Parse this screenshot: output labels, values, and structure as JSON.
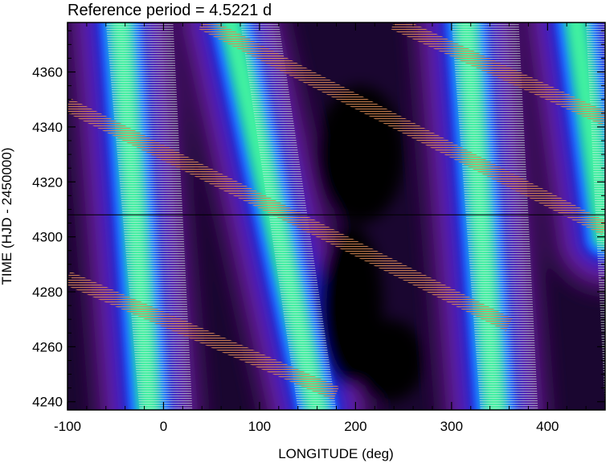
{
  "chart_data": {
    "type": "heatmap",
    "title": "Reference period = 4.5221 d",
    "xlabel": "LONGITUDE (deg)",
    "ylabel": "TIME (HJD - 2450000)",
    "xlim": [
      -100,
      460
    ],
    "ylim": [
      4237,
      4378
    ],
    "x_ticks": [
      -100,
      0,
      100,
      200,
      300,
      400
    ],
    "y_ticks": [
      4240,
      4260,
      4280,
      4300,
      4320,
      4340,
      4360
    ],
    "grid": false,
    "colors": {
      "background": "#000000",
      "levels": [
        "#000000",
        "#3a0a5a",
        "#6a1fa0",
        "#2222cc",
        "#1a6cff",
        "#20c8b0",
        "#40f0a0"
      ],
      "light_band": "#cfead8",
      "dark_band": "#d08050"
    },
    "reference_line_y": 4308,
    "ridges": [
      {
        "x0": -45,
        "y0": 4378,
        "x1": -15,
        "y1": 4237
      },
      {
        "x0": 70,
        "y0": 4378,
        "x1": 160,
        "y1": 4237
      },
      {
        "x0": 315,
        "y0": 4378,
        "x1": 345,
        "y1": 4237
      },
      {
        "x0": 430,
        "y0": 4378,
        "x1": 460,
        "y1": 4300
      }
    ],
    "light_bands": [
      {
        "x_top_left": -60,
        "x_top_right": 10,
        "x_bot_left": -25,
        "x_bot_right": 30
      },
      {
        "x_top_left": 80,
        "x_top_right": 120,
        "x_bot_left": 140,
        "x_bot_right": 180
      },
      {
        "x_top_left": 300,
        "x_top_right": 370,
        "x_bot_left": 330,
        "x_bot_right": 390
      },
      {
        "x_top_left": 440,
        "x_top_right": 460,
        "x_bot_left": 460,
        "x_bot_right": 460
      }
    ],
    "dark_bands": [
      {
        "x0": -100,
        "y0": 4285,
        "x1": 180,
        "y1": 4243
      },
      {
        "x0": -100,
        "y0": 4348,
        "x1": 360,
        "y1": 4268
      },
      {
        "x0": 40,
        "y0": 4378,
        "x1": 460,
        "y1": 4303
      },
      {
        "x0": 240,
        "y0": 4378,
        "x1": 460,
        "y1": 4343
      }
    ]
  }
}
